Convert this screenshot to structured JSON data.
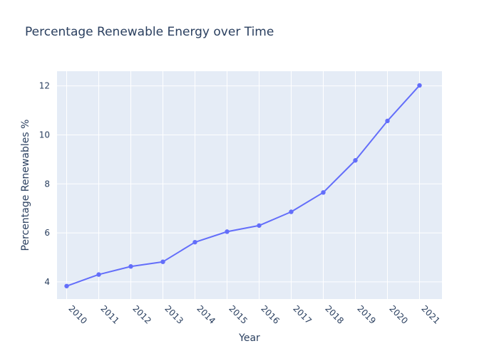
{
  "chart_data": {
    "type": "line",
    "title": "Percentage Renewable Energy over Time",
    "xlabel": "Year",
    "ylabel": "Percentage Renewables %",
    "categories": [
      "2010",
      "2011",
      "2012",
      "2013",
      "2014",
      "2015",
      "2016",
      "2017",
      "2018",
      "2019",
      "2020",
      "2021"
    ],
    "x": [
      2010,
      2011,
      2012,
      2013,
      2014,
      2015,
      2016,
      2017,
      2018,
      2019,
      2020,
      2021
    ],
    "series": [
      {
        "values": [
          3.83,
          4.3,
          4.63,
          4.82,
          5.62,
          6.05,
          6.3,
          6.86,
          7.65,
          8.96,
          10.57,
          12.02
        ]
      }
    ],
    "xlim": [
      2009.7,
      2021.7
    ],
    "ylim": [
      3.3,
      12.6
    ],
    "yticks": [
      4,
      6,
      8,
      10,
      12
    ],
    "grid": true,
    "colors": {
      "plot_background": "#E5ECF6",
      "grid": "#ffffff",
      "line": "#636EFA",
      "text": "#2a3f5f"
    }
  }
}
